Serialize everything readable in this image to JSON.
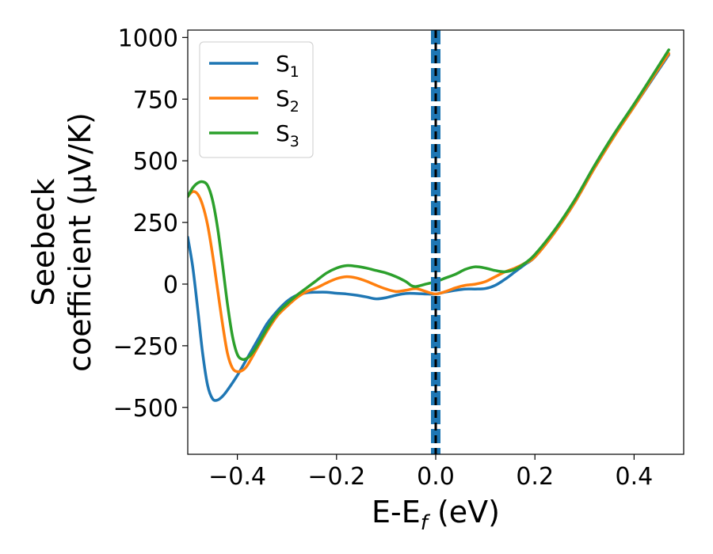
{
  "chart_data": {
    "type": "line",
    "title": "",
    "xlabel": "E-E",
    "xlabel_sub": "f",
    "xlabel_unit": " (eV)",
    "ylabel_line1": "Seebeck",
    "ylabel_line2": "coefficient  (μV/K)",
    "xlim": [
      -0.5,
      0.5
    ],
    "ylim": [
      -690,
      1030
    ],
    "xticks": [
      -0.4,
      -0.2,
      0.0,
      0.2,
      0.4
    ],
    "xtick_labels": [
      "−0.4",
      "−0.2",
      "0.0",
      "0.2",
      "0.4"
    ],
    "yticks": [
      -500,
      -250,
      0,
      250,
      500,
      750,
      1000
    ],
    "ytick_labels": [
      "−500",
      "−250",
      "0",
      "250",
      "500",
      "750",
      "1000"
    ],
    "grid": false,
    "legend_position": "top-left",
    "fermi_line_x": 0.0,
    "series": [
      {
        "name": "S",
        "sub": "1",
        "color": "#1f77b4",
        "points": [
          [
            -0.5,
            190
          ],
          [
            -0.49,
            70
          ],
          [
            -0.48,
            -100
          ],
          [
            -0.47,
            -280
          ],
          [
            -0.46,
            -410
          ],
          [
            -0.45,
            -465
          ],
          [
            -0.44,
            -470
          ],
          [
            -0.43,
            -455
          ],
          [
            -0.42,
            -430
          ],
          [
            -0.4,
            -370
          ],
          [
            -0.38,
            -300
          ],
          [
            -0.36,
            -230
          ],
          [
            -0.34,
            -160
          ],
          [
            -0.32,
            -110
          ],
          [
            -0.3,
            -70
          ],
          [
            -0.28,
            -45
          ],
          [
            -0.26,
            -35
          ],
          [
            -0.24,
            -33
          ],
          [
            -0.22,
            -33
          ],
          [
            -0.2,
            -37
          ],
          [
            -0.18,
            -40
          ],
          [
            -0.16,
            -45
          ],
          [
            -0.14,
            -52
          ],
          [
            -0.12,
            -60
          ],
          [
            -0.1,
            -55
          ],
          [
            -0.08,
            -45
          ],
          [
            -0.06,
            -38
          ],
          [
            -0.04,
            -38
          ],
          [
            -0.02,
            -40
          ],
          [
            0.0,
            -40
          ],
          [
            0.02,
            -32
          ],
          [
            0.04,
            -25
          ],
          [
            0.06,
            -20
          ],
          [
            0.08,
            -20
          ],
          [
            0.1,
            -18
          ],
          [
            0.12,
            -5
          ],
          [
            0.14,
            20
          ],
          [
            0.16,
            50
          ],
          [
            0.18,
            80
          ],
          [
            0.2,
            110
          ],
          [
            0.24,
            210
          ],
          [
            0.28,
            330
          ],
          [
            0.32,
            470
          ],
          [
            0.36,
            600
          ],
          [
            0.4,
            720
          ],
          [
            0.44,
            840
          ],
          [
            0.47,
            930
          ]
        ]
      },
      {
        "name": "S",
        "sub": "2",
        "color": "#ff7f0e",
        "points": [
          [
            -0.5,
            355
          ],
          [
            -0.49,
            375
          ],
          [
            -0.48,
            365
          ],
          [
            -0.47,
            320
          ],
          [
            -0.46,
            240
          ],
          [
            -0.45,
            120
          ],
          [
            -0.44,
            -20
          ],
          [
            -0.43,
            -160
          ],
          [
            -0.42,
            -280
          ],
          [
            -0.41,
            -340
          ],
          [
            -0.4,
            -355
          ],
          [
            -0.39,
            -350
          ],
          [
            -0.38,
            -330
          ],
          [
            -0.36,
            -260
          ],
          [
            -0.34,
            -190
          ],
          [
            -0.32,
            -130
          ],
          [
            -0.3,
            -90
          ],
          [
            -0.28,
            -55
          ],
          [
            -0.26,
            -30
          ],
          [
            -0.24,
            -15
          ],
          [
            -0.22,
            5
          ],
          [
            -0.2,
            22
          ],
          [
            -0.18,
            30
          ],
          [
            -0.16,
            25
          ],
          [
            -0.14,
            12
          ],
          [
            -0.12,
            -5
          ],
          [
            -0.1,
            -20
          ],
          [
            -0.08,
            -30
          ],
          [
            -0.06,
            -25
          ],
          [
            -0.04,
            -18
          ],
          [
            -0.02,
            -30
          ],
          [
            0.0,
            -40
          ],
          [
            0.02,
            -30
          ],
          [
            0.04,
            -15
          ],
          [
            0.06,
            -5
          ],
          [
            0.08,
            0
          ],
          [
            0.1,
            10
          ],
          [
            0.12,
            30
          ],
          [
            0.14,
            50
          ],
          [
            0.16,
            65
          ],
          [
            0.18,
            85
          ],
          [
            0.2,
            110
          ],
          [
            0.24,
            210
          ],
          [
            0.28,
            330
          ],
          [
            0.32,
            470
          ],
          [
            0.36,
            600
          ],
          [
            0.4,
            720
          ],
          [
            0.44,
            845
          ],
          [
            0.47,
            935
          ]
        ]
      },
      {
        "name": "S",
        "sub": "3",
        "color": "#2ca02c",
        "points": [
          [
            -0.5,
            355
          ],
          [
            -0.49,
            390
          ],
          [
            -0.48,
            410
          ],
          [
            -0.47,
            415
          ],
          [
            -0.46,
            400
          ],
          [
            -0.45,
            340
          ],
          [
            -0.44,
            230
          ],
          [
            -0.43,
            80
          ],
          [
            -0.42,
            -80
          ],
          [
            -0.41,
            -210
          ],
          [
            -0.4,
            -285
          ],
          [
            -0.39,
            -305
          ],
          [
            -0.38,
            -300
          ],
          [
            -0.37,
            -280
          ],
          [
            -0.36,
            -250
          ],
          [
            -0.34,
            -180
          ],
          [
            -0.32,
            -120
          ],
          [
            -0.3,
            -80
          ],
          [
            -0.28,
            -45
          ],
          [
            -0.26,
            -15
          ],
          [
            -0.24,
            15
          ],
          [
            -0.22,
            45
          ],
          [
            -0.2,
            65
          ],
          [
            -0.18,
            75
          ],
          [
            -0.16,
            72
          ],
          [
            -0.14,
            65
          ],
          [
            -0.12,
            55
          ],
          [
            -0.1,
            45
          ],
          [
            -0.08,
            30
          ],
          [
            -0.06,
            10
          ],
          [
            -0.05,
            -5
          ],
          [
            -0.04,
            -10
          ],
          [
            -0.02,
            0
          ],
          [
            0.0,
            10
          ],
          [
            0.02,
            25
          ],
          [
            0.04,
            40
          ],
          [
            0.06,
            60
          ],
          [
            0.08,
            70
          ],
          [
            0.1,
            65
          ],
          [
            0.12,
            55
          ],
          [
            0.14,
            50
          ],
          [
            0.16,
            60
          ],
          [
            0.18,
            85
          ],
          [
            0.2,
            120
          ],
          [
            0.24,
            220
          ],
          [
            0.28,
            340
          ],
          [
            0.32,
            480
          ],
          [
            0.36,
            610
          ],
          [
            0.4,
            730
          ],
          [
            0.44,
            855
          ],
          [
            0.47,
            950
          ]
        ]
      }
    ]
  }
}
